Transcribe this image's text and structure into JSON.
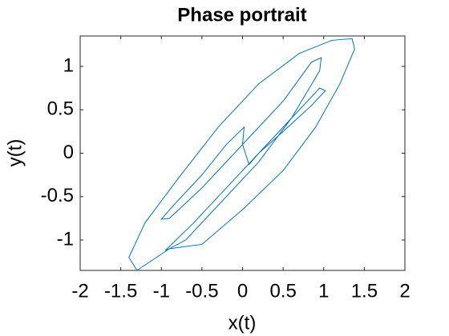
{
  "chart_data": {
    "type": "line",
    "title": "Phase portrait",
    "x_label": "x(t)",
    "y_label": "y(t)",
    "x": [
      -1.3,
      -1.4,
      -1.2,
      -0.8,
      -0.3,
      0.2,
      0.7,
      1.1,
      1.35,
      1.38,
      1.2,
      0.9,
      0.5,
      0,
      -0.5,
      -0.9,
      -0.95,
      -0.6,
      -0.2,
      0.3,
      0.7,
      0.95,
      1.02,
      0.85,
      0.5,
      0.2,
      0.08,
      0,
      0.02,
      -0.2,
      -0.5,
      -0.85,
      -1.0,
      -0.9,
      -0.5,
      0,
      0.5,
      0.85,
      0.97,
      0.95,
      0.6,
      0.2,
      -0.3,
      -0.7,
      -0.9,
      -1.3
    ],
    "series": [
      {
        "color": "#0072bd",
        "values": [
          -1.35,
          -1.2,
          -0.8,
          -0.3,
          0.3,
          0.8,
          1.15,
          1.3,
          1.32,
          1.2,
          0.8,
          0.3,
          -0.2,
          -0.65,
          -1.05,
          -1.1,
          -1.12,
          -0.8,
          -0.4,
          0.1,
          0.5,
          0.75,
          0.72,
          0.55,
          0.25,
          0.0,
          -0.13,
          0.1,
          0.3,
          0.1,
          -0.25,
          -0.6,
          -0.76,
          -0.75,
          -0.4,
          0.1,
          0.6,
          1.05,
          1.1,
          0.95,
          0.4,
          -0.1,
          -0.6,
          -1.0,
          -1.1,
          -1.35
        ]
      }
    ],
    "xlim": [
      -2,
      2
    ],
    "ylim": [
      -1.35,
      1.35
    ],
    "xticks": [
      -2,
      -1.5,
      -1,
      -0.5,
      0,
      0.5,
      1,
      1.5,
      2
    ],
    "yticks": [
      -1,
      -0.5,
      0,
      0.5,
      1
    ]
  }
}
